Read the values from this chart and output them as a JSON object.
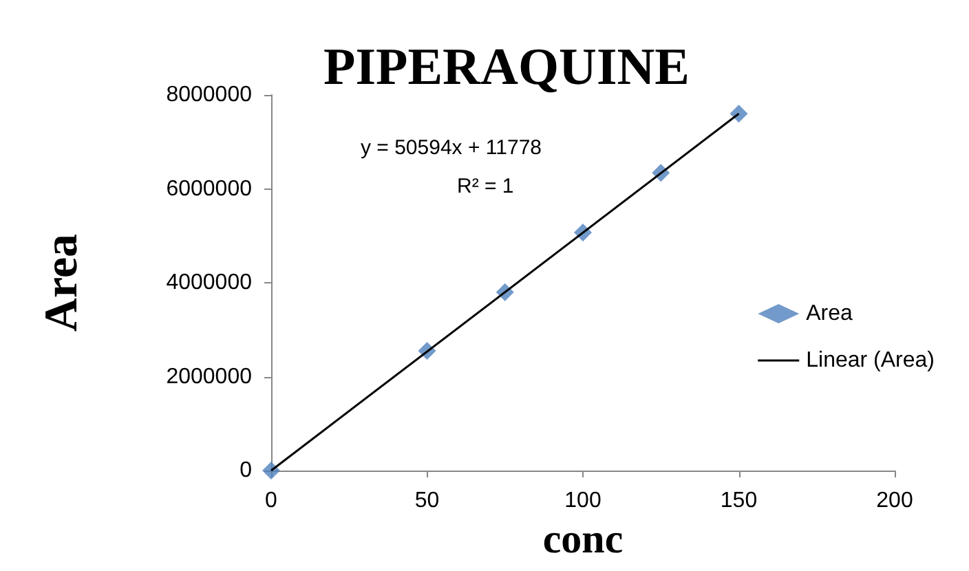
{
  "chart_data": {
    "type": "scatter",
    "title": "PIPERAQUINE",
    "xlabel": "conc",
    "ylabel": "Area",
    "annotations": [
      "y = 50594x + 11778",
      "R² = 1"
    ],
    "series": [
      {
        "name": "Area",
        "color": "#4f81bd",
        "marker": "diamond",
        "x": [
          0,
          50,
          75,
          100,
          125,
          150
        ],
        "values": [
          0,
          2550000,
          3800000,
          5070000,
          6340000,
          7600000
        ]
      },
      {
        "name": "Linear (Area)",
        "type": "line",
        "color": "#000000",
        "marker": "none",
        "line_style": "solid",
        "x": [
          0,
          150
        ],
        "values": [
          0,
          7600000
        ]
      }
    ],
    "xlim": [
      0,
      200
    ],
    "xticks": [
      0,
      50,
      100,
      150,
      200
    ],
    "ylim": [
      0,
      8000000
    ],
    "yticks": [
      0,
      2000000,
      4000000,
      6000000,
      8000000
    ],
    "grid": false,
    "legend": "right"
  }
}
